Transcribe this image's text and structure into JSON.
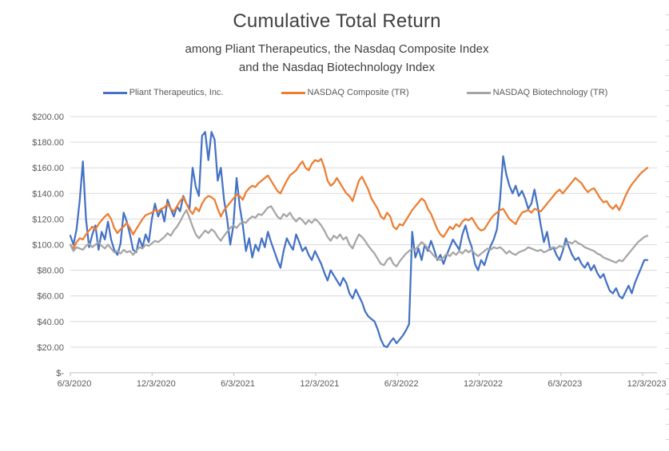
{
  "page": {
    "title": "Cumulative Total Return",
    "subtitle_line1": "among Pliant Therapeutics, the Nasdaq Composite Index",
    "subtitle_line2": "and the Nasdaq Biotechnology Index"
  },
  "colors": {
    "series_blue": "#4472C4",
    "series_orange": "#ED7D31",
    "series_gray": "#A5A5A5",
    "gridline": "#D9D9D9",
    "axis_line": "#BFBFBF",
    "axis_text": "#595959",
    "title_text": "#404040"
  },
  "chart_data": {
    "type": "line",
    "title": "Cumulative Total Return",
    "subtitle": "among Pliant Therapeutics, the Nasdaq Composite Index and the Nasdaq Biotechnology Index",
    "xlabel": "",
    "ylabel": "",
    "ylim": [
      0,
      200
    ],
    "y_step": 20,
    "grid": true,
    "legend_position": "top",
    "x_tick_labels": [
      "6/3/2020",
      "12/3/2020",
      "6/3/2021",
      "12/3/2021",
      "6/3/2022",
      "12/3/2022",
      "6/3/2023",
      "12/3/2023"
    ],
    "y_tick_labels": [
      "$-",
      "$20.00",
      "$40.00",
      "$60.00",
      "$80.00",
      "$100.00",
      "$120.00",
      "$140.00",
      "$160.00",
      "$180.00",
      "$200.00"
    ],
    "x_start_date": "6/3/2020",
    "x_end_date": "12/29/2023",
    "sampling": "weekly",
    "series": [
      {
        "name": "Pliant Therapeutics, Inc.",
        "color": "#4472C4",
        "values": [
          107,
          100,
          112,
          135,
          165,
          120,
          98,
          108,
          115,
          96,
          110,
          104,
          118,
          104,
          96,
          92,
          101,
          125,
          118,
          108,
          96,
          94,
          105,
          98,
          108,
          102,
          120,
          132,
          122,
          128,
          118,
          135,
          128,
          122,
          130,
          126,
          138,
          132,
          128,
          160,
          145,
          138,
          185,
          188,
          166,
          188,
          182,
          150,
          160,
          135,
          120,
          100,
          115,
          152,
          130,
          115,
          95,
          105,
          90,
          100,
          95,
          105,
          98,
          110,
          102,
          95,
          88,
          82,
          95,
          105,
          100,
          96,
          108,
          102,
          95,
          98,
          92,
          88,
          95,
          90,
          85,
          78,
          72,
          80,
          76,
          72,
          68,
          74,
          70,
          62,
          58,
          65,
          60,
          55,
          48,
          44,
          42,
          40,
          34,
          26,
          21,
          20,
          24,
          27,
          23,
          26,
          29,
          33,
          38,
          110,
          90,
          97,
          88,
          100,
          95,
          103,
          96,
          88,
          92,
          85,
          92,
          98,
          104,
          100,
          96,
          108,
          115,
          105,
          98,
          85,
          80,
          88,
          84,
          92,
          99,
          104,
          112,
          135,
          169,
          155,
          146,
          140,
          146,
          138,
          142,
          136,
          128,
          132,
          143,
          130,
          115,
          102,
          110,
          96,
          98,
          92,
          88,
          95,
          105,
          98,
          92,
          88,
          90,
          85,
          82,
          86,
          80,
          84,
          78,
          74,
          77,
          70,
          64,
          62,
          66,
          60,
          58,
          63,
          68,
          62,
          70,
          76,
          82,
          88,
          88
        ]
      },
      {
        "name": "NASDAQ Composite (TR)",
        "color": "#ED7D31",
        "values": [
          100,
          97,
          102,
          105,
          104,
          108,
          111,
          114,
          112,
          116,
          119,
          122,
          124,
          120,
          113,
          109,
          112,
          114,
          117,
          113,
          108,
          112,
          116,
          120,
          123,
          124,
          125,
          127,
          126,
          128,
          129,
          132,
          128,
          126,
          130,
          134,
          137,
          132,
          127,
          124,
          129,
          126,
          132,
          136,
          138,
          137,
          135,
          128,
          122,
          127,
          130,
          133,
          136,
          139,
          138,
          135,
          141,
          144,
          146,
          145,
          148,
          150,
          152,
          154,
          150,
          146,
          142,
          140,
          145,
          150,
          154,
          156,
          158,
          162,
          165,
          160,
          158,
          163,
          166,
          165,
          167,
          160,
          150,
          146,
          148,
          152,
          148,
          144,
          140,
          138,
          134,
          142,
          150,
          153,
          148,
          143,
          136,
          132,
          128,
          122,
          120,
          125,
          122,
          114,
          112,
          116,
          115,
          119,
          123,
          127,
          130,
          133,
          136,
          134,
          128,
          124,
          118,
          112,
          108,
          106,
          110,
          114,
          112,
          116,
          114,
          118,
          120,
          119,
          121,
          117,
          113,
          111,
          112,
          116,
          120,
          123,
          125,
          127,
          128,
          124,
          120,
          118,
          116,
          121,
          125,
          126,
          127,
          125,
          128,
          127,
          126,
          129,
          132,
          135,
          138,
          141,
          143,
          140,
          143,
          146,
          149,
          152,
          150,
          148,
          144,
          141,
          143,
          144,
          140,
          136,
          133,
          134,
          130,
          128,
          131,
          127,
          132,
          138,
          143,
          147,
          150,
          153,
          156,
          158,
          160
        ]
      },
      {
        "name": "NASDAQ Biotechnology (TR)",
        "color": "#A5A5A5",
        "values": [
          100,
          95,
          98,
          97,
          96,
          99,
          101,
          98,
          100,
          102,
          99,
          97,
          100,
          97,
          94,
          95,
          93,
          96,
          94,
          95,
          92,
          95,
          98,
          97,
          100,
          99,
          101,
          103,
          102,
          104,
          106,
          109,
          107,
          111,
          114,
          118,
          123,
          127,
          121,
          114,
          108,
          105,
          108,
          111,
          109,
          112,
          110,
          106,
          103,
          107,
          110,
          113,
          115,
          113,
          116,
          118,
          117,
          120,
          122,
          121,
          124,
          123,
          126,
          129,
          130,
          126,
          122,
          120,
          124,
          122,
          125,
          121,
          118,
          121,
          119,
          116,
          119,
          117,
          120,
          118,
          115,
          111,
          106,
          103,
          107,
          105,
          108,
          104,
          106,
          100,
          97,
          103,
          108,
          106,
          103,
          99,
          96,
          93,
          89,
          85,
          84,
          88,
          90,
          85,
          83,
          87,
          90,
          93,
          95,
          97,
          96,
          99,
          102,
          100,
          97,
          94,
          91,
          89,
          88,
          90,
          93,
          91,
          94,
          92,
          95,
          93,
          96,
          94,
          96,
          93,
          91,
          93,
          95,
          97,
          96,
          98,
          97,
          98,
          96,
          93,
          95,
          93,
          92,
          94,
          95,
          96,
          98,
          97,
          96,
          95,
          96,
          94,
          95,
          97,
          98,
          97,
          99,
          98,
          100,
          102,
          101,
          103,
          101,
          100,
          98,
          97,
          96,
          95,
          93,
          92,
          90,
          89,
          88,
          87,
          86,
          88,
          87,
          90,
          93,
          96,
          99,
          102,
          104,
          106,
          107
        ]
      }
    ]
  }
}
